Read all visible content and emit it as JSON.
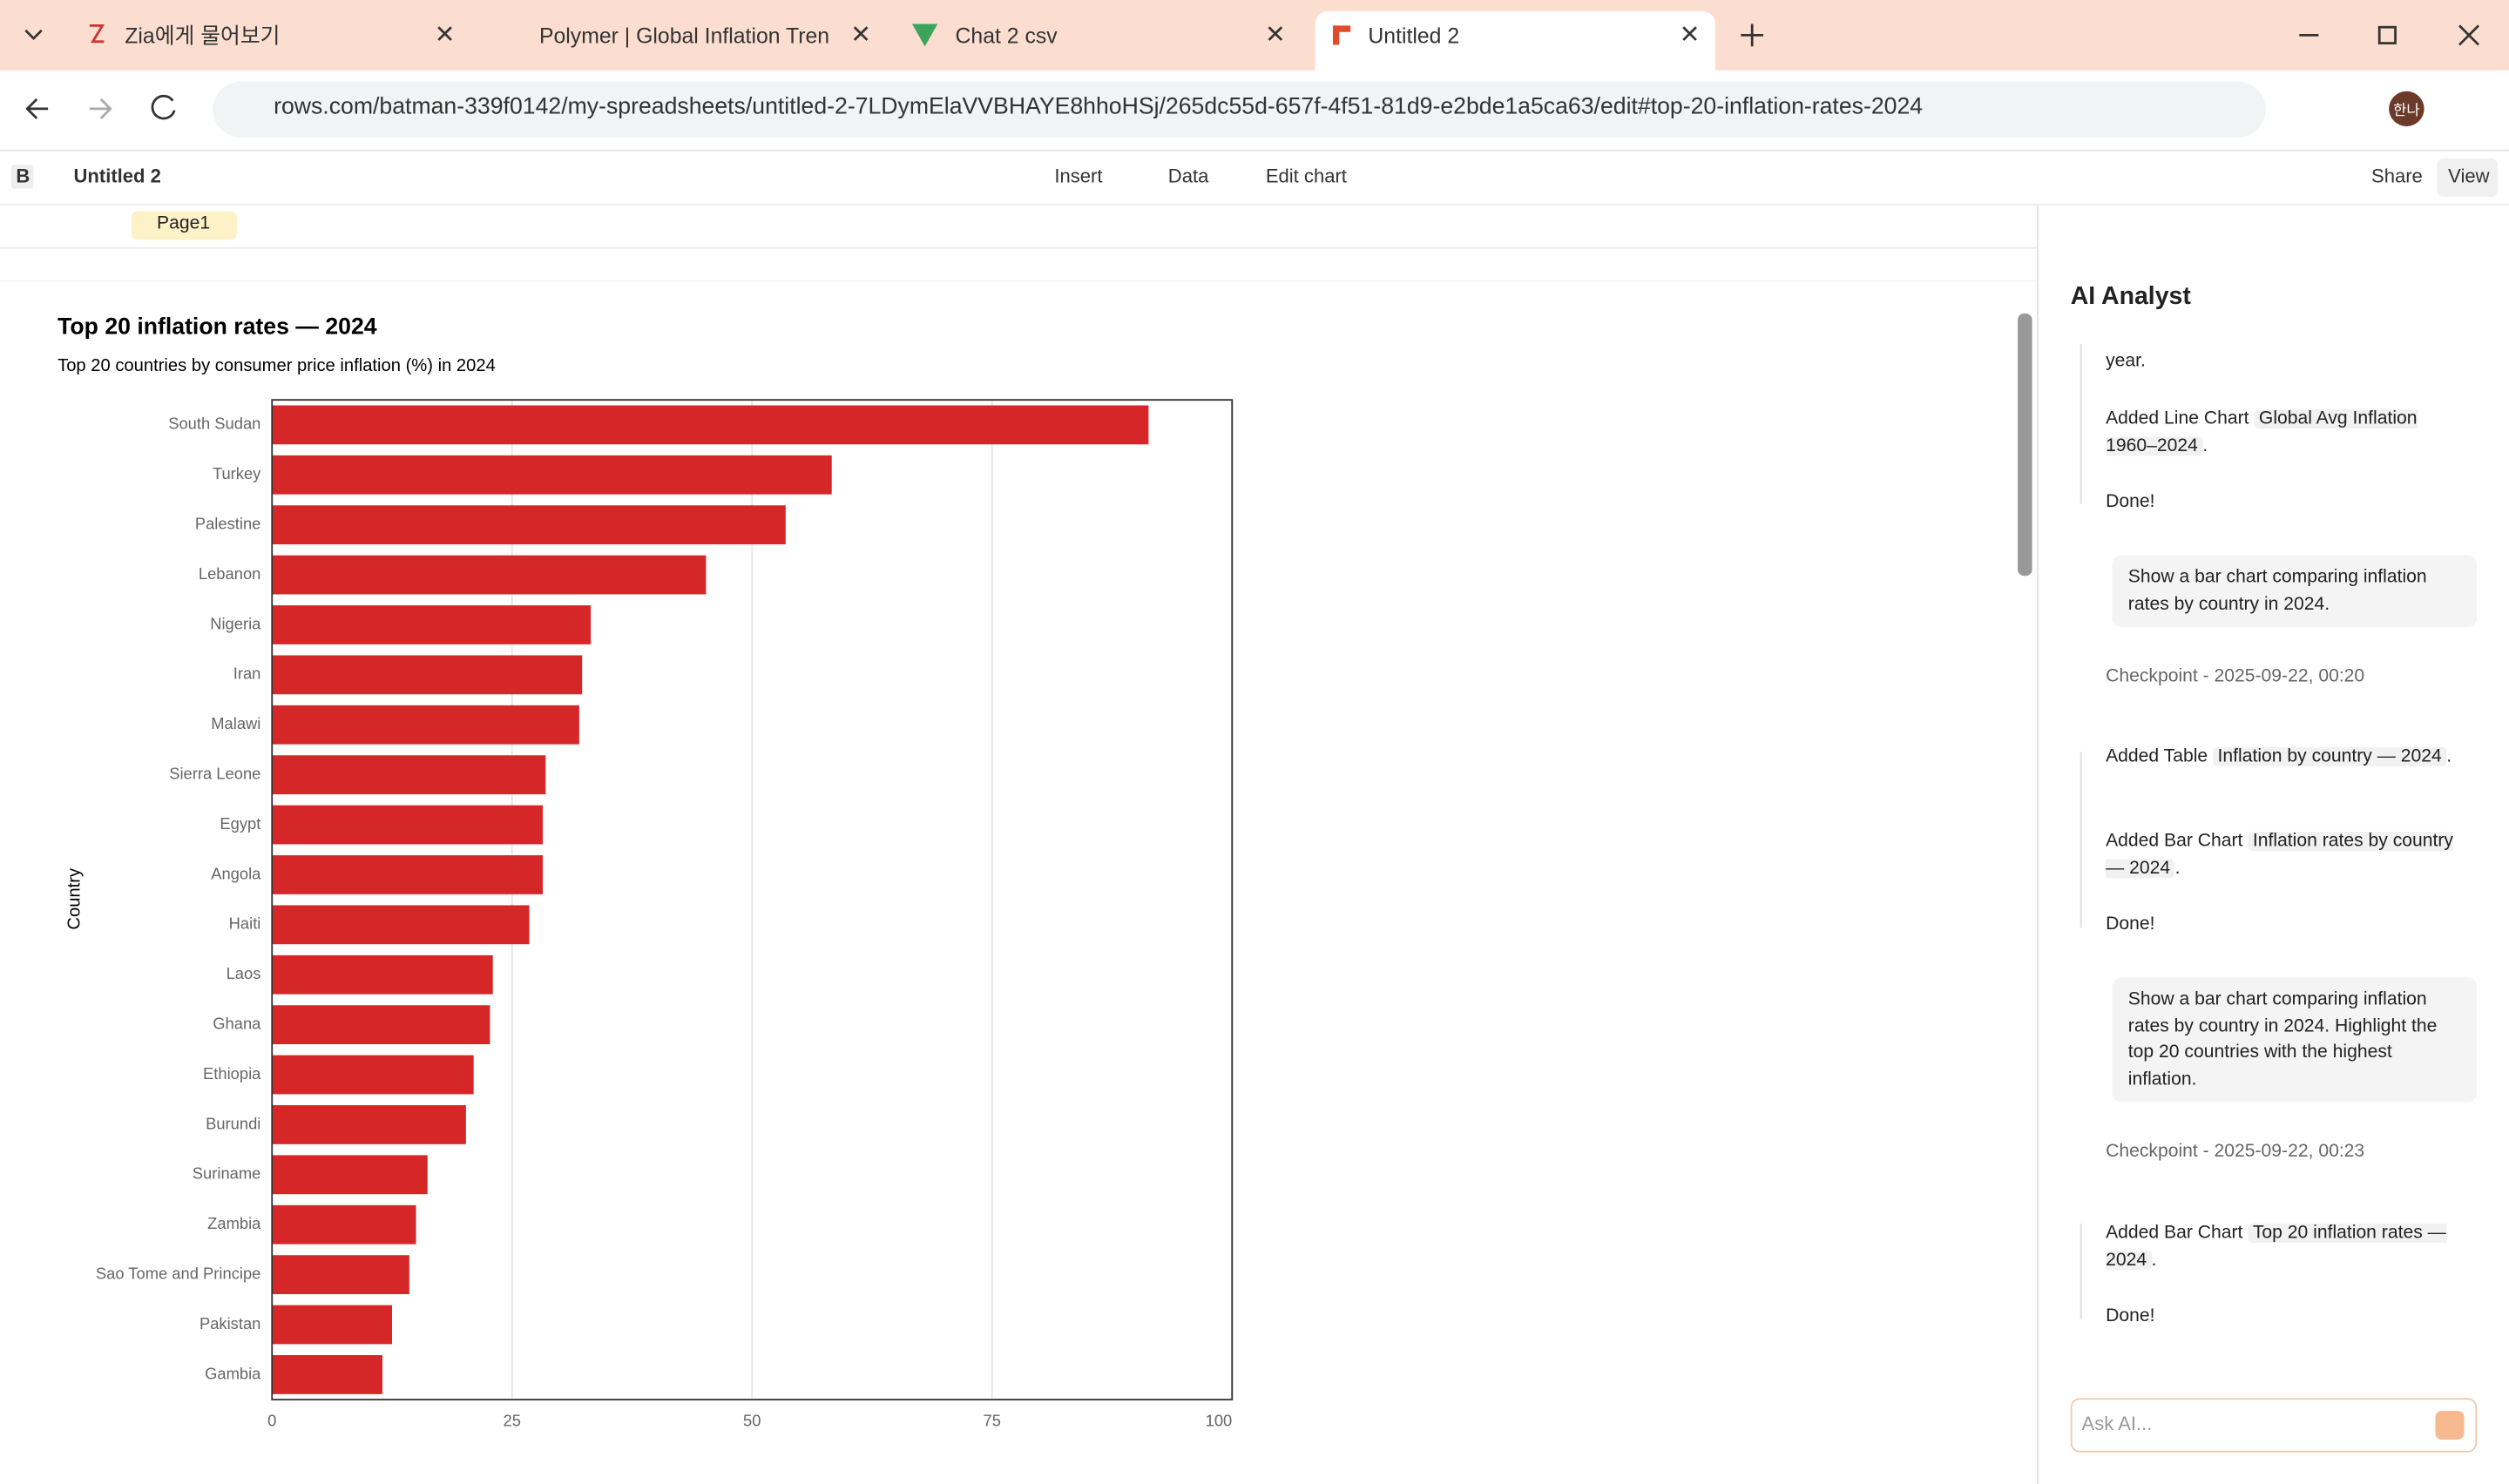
{
  "browser": {
    "tabs": [
      "Zia에게 물어보기",
      "Polymer | Global Inflation Tren",
      "Chat 2 csv",
      "Untitled 2"
    ],
    "url": "rows.com/batman-339f0142/my-spreadsheets/untitled-2-7LDymElaVVBHAYE8hhoHSj/265dc55d-657f-4f51-81d9-e2bde1a5ca63/edit#top-20-inflation-rates-2024",
    "avatar": "한나"
  },
  "app": {
    "workspace": "B",
    "doc_title": "Untitled 2",
    "toolbar": [
      "Insert",
      "Data",
      "Edit chart"
    ],
    "share": "Share",
    "view": "View",
    "page_tab": "Page1"
  },
  "chart_data": {
    "type": "bar",
    "orientation": "horizontal",
    "title": "Top 20 inflation rates — 2024",
    "subtitle": "Top 20 countries by consumer price inflation (%) in 2024",
    "y_label": "Country",
    "categories": [
      "South Sudan",
      "Turkey",
      "Palestine",
      "Lebanon",
      "Nigeria",
      "Iran",
      "Malawi",
      "Sierra Leone",
      "Egypt",
      "Angola",
      "Haiti",
      "Laos",
      "Ghana",
      "Ethiopia",
      "Burundi",
      "Suriname",
      "Zambia",
      "Sao Tome and Principe",
      "Pakistan",
      "Gambia"
    ],
    "values": [
      91.3,
      58.3,
      53.5,
      45.2,
      33.2,
      32.3,
      32.0,
      28.5,
      28.2,
      28.2,
      26.8,
      23.0,
      22.7,
      21.0,
      20.2,
      16.2,
      15.0,
      14.3,
      12.5,
      11.5
    ],
    "color": "#d62728",
    "xlim": [
      0,
      100
    ],
    "xticks": [
      0,
      25,
      50,
      75,
      100
    ],
    "grid": true
  },
  "ai_panel": {
    "title": "AI Analyst",
    "items": [
      {
        "text": "year."
      },
      {
        "text": "Added Line Chart",
        "chip": "Global Avg Inflation 1960–2024",
        "end": "."
      },
      {
        "text": "Done!"
      },
      {
        "text": "Show a bar chart comparing inflation rates by country in 2024."
      },
      {
        "text": "Checkpoint - 2025-09-22, 00:20"
      },
      {
        "text": "Added Table",
        "chip": "Inflation by country — 2024",
        "end": "."
      },
      {
        "text": "Added Bar Chart",
        "chip": "Inflation rates by country — 2024",
        "end": "."
      },
      {
        "text": "Done!"
      },
      {
        "text": "Show a bar chart comparing inflation rates by country in 2024. Highlight the top 20 countries with the highest inflation."
      },
      {
        "text": "Checkpoint - 2025-09-22, 00:23"
      },
      {
        "text": "Added Bar Chart",
        "chip": "Top 20 inflation rates — 2024",
        "end": "."
      },
      {
        "text": "Done!"
      }
    ],
    "input_placeholder": "Ask AI..."
  }
}
